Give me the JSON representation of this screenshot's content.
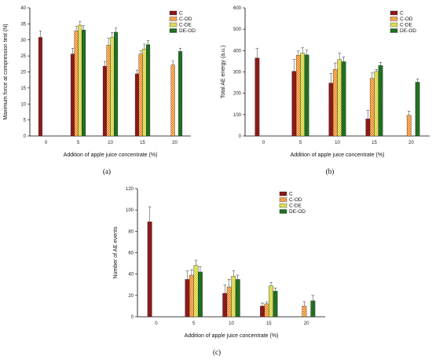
{
  "figure": {
    "panel_labels": [
      "(a)",
      "(b)",
      "(c)"
    ]
  },
  "chart_data": [
    {
      "type": "bar",
      "panel": "(a)",
      "xlabel": "Addition of apple juice concentrate (%)",
      "ylabel": "Maximum force at compression test (N)",
      "ylim": [
        0,
        40
      ],
      "yticks": [
        0,
        5,
        10,
        15,
        20,
        25,
        30,
        35,
        40
      ],
      "categories": [
        "0",
        "5",
        "10",
        "15",
        "20"
      ],
      "legend_position": "top-right",
      "series": [
        {
          "name": "C",
          "color": "#8b1a1a",
          "pattern": "solid",
          "values": [
            30.8,
            25.6,
            21.8,
            19.4,
            null
          ],
          "errors": [
            2.0,
            1.8,
            1.5,
            1.2,
            null
          ]
        },
        {
          "name": "C-OD",
          "color": "#f07d1a",
          "pattern": "hatch-back",
          "values": [
            null,
            32.8,
            28.4,
            25.6,
            22.2
          ],
          "errors": [
            null,
            1.4,
            2.2,
            1.0,
            1.2
          ]
        },
        {
          "name": "C-DE",
          "color": "#c8c80a",
          "pattern": "crosshatch",
          "values": [
            null,
            34.6,
            30.8,
            27.2,
            null
          ],
          "errors": [
            null,
            1.2,
            1.5,
            1.5,
            null
          ]
        },
        {
          "name": "DE-OD",
          "color": "#1e6b1e",
          "pattern": "dots",
          "values": [
            null,
            33.1,
            32.4,
            28.5,
            26.4
          ],
          "errors": [
            null,
            1.3,
            1.3,
            1.3,
            1.0
          ]
        }
      ]
    },
    {
      "type": "bar",
      "panel": "(b)",
      "xlabel": "Addition of apple juice concentrate (%)",
      "ylabel": "Total AE energy (a.u.)",
      "ylim": [
        0,
        600
      ],
      "yticks": [
        0,
        100,
        200,
        300,
        400,
        500,
        600
      ],
      "categories": [
        "0",
        "5",
        "10",
        "15",
        "20"
      ],
      "legend_position": "top-right",
      "series": [
        {
          "name": "C",
          "color": "#8b1a1a",
          "pattern": "solid",
          "values": [
            365,
            303,
            248,
            80,
            null
          ],
          "errors": [
            45,
            55,
            45,
            40,
            null
          ]
        },
        {
          "name": "C-OD",
          "color": "#f07d1a",
          "pattern": "hatch-back",
          "values": [
            null,
            378,
            312,
            270,
            97
          ],
          "errors": [
            null,
            20,
            30,
            25,
            20
          ]
        },
        {
          "name": "C-DE",
          "color": "#c8c80a",
          "pattern": "crosshatch",
          "values": [
            null,
            388,
            358,
            302,
            null
          ],
          "errors": [
            null,
            25,
            30,
            10,
            null
          ]
        },
        {
          "name": "DE-OD",
          "color": "#1e6b1e",
          "pattern": "dots",
          "values": [
            null,
            380,
            348,
            330,
            252
          ],
          "errors": [
            null,
            22,
            22,
            15,
            15
          ]
        }
      ]
    },
    {
      "type": "bar",
      "panel": "(c)",
      "xlabel": "Addition of apple juice concentrate (%)",
      "ylabel": "Number of AE events",
      "ylim": [
        0,
        120
      ],
      "yticks": [
        0,
        20,
        40,
        60,
        80,
        100,
        120
      ],
      "categories": [
        "0",
        "5",
        "10",
        "15",
        "20"
      ],
      "legend_position": "top-right",
      "series": [
        {
          "name": "C",
          "color": "#8b1a1a",
          "pattern": "solid",
          "values": [
            89,
            35,
            22,
            10,
            null
          ],
          "errors": [
            14,
            8,
            8,
            3,
            null
          ]
        },
        {
          "name": "C-OD",
          "color": "#f07d1a",
          "pattern": "hatch-back",
          "values": [
            null,
            39,
            28,
            12,
            10
          ],
          "errors": [
            null,
            5,
            7,
            2,
            4
          ]
        },
        {
          "name": "C-DE",
          "color": "#c8c80a",
          "pattern": "crosshatch",
          "values": [
            null,
            48,
            38,
            29,
            null
          ],
          "errors": [
            null,
            5,
            5,
            3,
            null
          ]
        },
        {
          "name": "DE-OD",
          "color": "#1e6b1e",
          "pattern": "dots",
          "values": [
            null,
            42,
            35,
            24,
            15
          ],
          "errors": [
            null,
            5,
            4,
            3,
            5
          ]
        }
      ]
    }
  ]
}
